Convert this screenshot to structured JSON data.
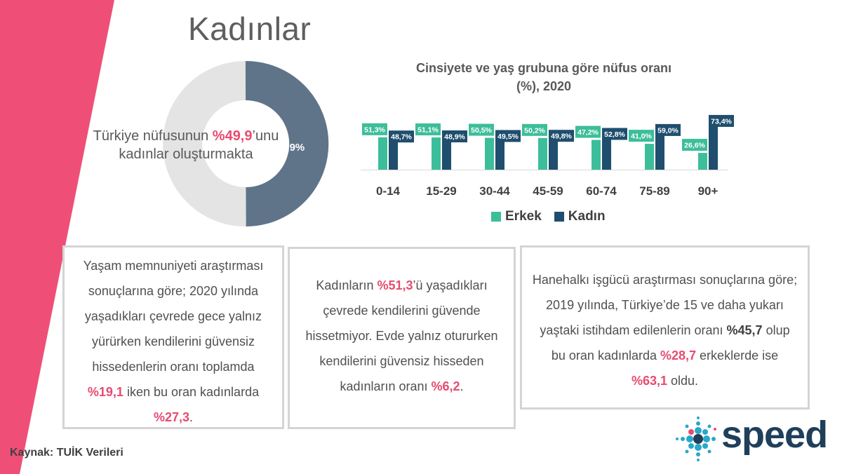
{
  "page_title": "Kadınlar",
  "colors": {
    "accent": "#e84b70",
    "erkek": "#3dbe9a",
    "kadin": "#1f4e6e",
    "donut_fill": "#5f7489",
    "donut_rest": "#e4e4e4"
  },
  "donut": {
    "value_label": "49,9%",
    "fraction": 0.499,
    "caption_pre": "Türkiye nüfusunun ",
    "caption_hl": "%49,9",
    "caption_post": "’unu",
    "caption_line2": "kadınlar oluşturmakta"
  },
  "chart_data": {
    "type": "bar",
    "title": "Cinsiyete ve yaş grubuna göre nüfus oranı (%), 2020",
    "title_line1": "Cinsiyete ve yaş grubuna göre nüfus oranı",
    "title_line2": "(%), 2020",
    "categories": [
      "0-14",
      "15-29",
      "30-44",
      "45-59",
      "60-74",
      "75-89",
      "90+"
    ],
    "series": [
      {
        "name": "Erkek",
        "values": [
          51.3,
          51.1,
          50.5,
          50.2,
          47.2,
          41.0,
          26.6
        ],
        "labels": [
          "51,3%",
          "51,1%",
          "50,5%",
          "50,2%",
          "47,2%",
          "41,0%",
          "26,6%"
        ]
      },
      {
        "name": "Kadın",
        "values": [
          48.7,
          48.9,
          49.5,
          49.8,
          52.8,
          59.0,
          73.4
        ],
        "labels": [
          "48,7%",
          "48,9%",
          "49,5%",
          "49,8%",
          "52,8%",
          "59,0%",
          "73,4%"
        ]
      }
    ],
    "ylim": [
      0,
      100
    ],
    "legend_position": "bottom",
    "grid": false
  },
  "box1": {
    "text_pre": "Yaşam memnuniyeti araştırması sonuçlarına göre; 2020 yılında yaşadıkları çevrede gece yalnız yürürken kendilerini güvensiz hissedenlerin oranı toplamda ",
    "hl1": "%19,1",
    "text_mid": " iken bu oran kadınlarda ",
    "hl2": "%27,3",
    "text_end": "."
  },
  "box2": {
    "text_pre": "Kadınların ",
    "hl1": "%51,3",
    "text_mid": "’ü yaşadıkları çevrede kendilerini güvende hissetmiyor. Evde yalnız otururken kendilerini güvensiz hisseden kadınların oranı ",
    "hl2": "%6,2",
    "text_end": "."
  },
  "box3": {
    "text_pre": "Hanehalkı işgücü araştırması sonuçlarına göre; 2019 yılında, Türkiye’de 15 ve daha yukarı yaştaki istihdam edilenlerin oranı ",
    "bold1": "%45,7",
    "text_mid": " olup bu oran kadınlarda ",
    "hl1": "%28,7",
    "text_mid2": " erkeklerde ise ",
    "hl2": "%63,1",
    "text_end": " oldu."
  },
  "source": "Kaynak: TUİK Verileri",
  "logo": {
    "text": "speed"
  }
}
